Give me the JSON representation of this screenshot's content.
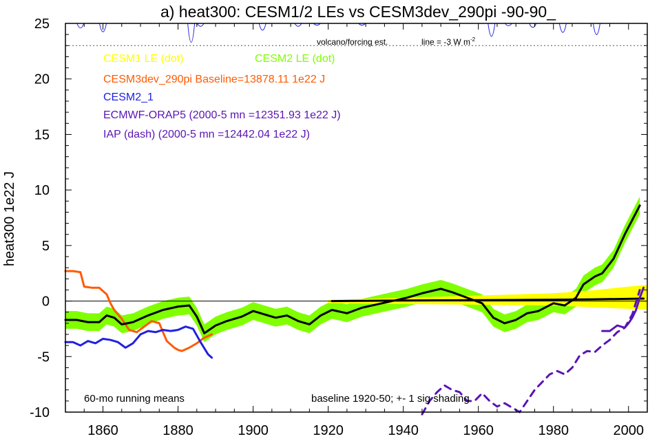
{
  "chart_data": {
    "type": "line",
    "title": "a) heat300: CESM1/2 LEs vs CESM3dev_290pi -90-90_",
    "ylabel": "heat300 1e22 J",
    "xlim": [
      1850,
      2005
    ],
    "ylim": [
      -10,
      25
    ],
    "xticks": [
      "1860",
      "1880",
      "1900",
      "1920",
      "1940",
      "1960",
      "1980",
      "2000"
    ],
    "yticks": [
      "-10",
      "-5",
      "0",
      "5",
      "10",
      "15",
      "20",
      "25"
    ],
    "legend": [
      {
        "text": "CESM1 LE (dot)",
        "color": "#ffff00"
      },
      {
        "text": "CESM2 LE (dot)",
        "color": "#80ff00"
      },
      {
        "text": "CESM3dev_290pi Baseline=13878.11 1e22 J",
        "color": "#ff5a00"
      },
      {
        "text": "CESM2_1",
        "color": "#2020e0"
      },
      {
        "text": "ECMWF-ORAP5 (2000-5 mn =12351.93 1e22 J)",
        "color": "#5a14b4"
      },
      {
        "text": "IAP (dash) (2000-5 mn =12442.04 1e22 J)",
        "color": "#5a14b4"
      }
    ],
    "annotations": {
      "volcano": "volcano/forcing est.",
      "line_label": "line = -3 W m",
      "line_sup": "-2",
      "running": "60-mo running means",
      "baseline": "baseline 1920-50; +- 1 sig shading"
    },
    "reference_line_y": 0,
    "volcano_baseline_y": 25,
    "volcano_dotted_y": 23,
    "volcano_dips": [
      {
        "year": 1854,
        "y": 24.3
      },
      {
        "year": 1860,
        "y": 23.6
      },
      {
        "year": 1883.5,
        "y": 21.7
      },
      {
        "year": 1886,
        "y": 24.6
      },
      {
        "year": 1902.5,
        "y": 23.9
      },
      {
        "year": 1912,
        "y": 24.6
      },
      {
        "year": 1917,
        "y": 24.8
      },
      {
        "year": 1929,
        "y": 24.8
      },
      {
        "year": 1963.5,
        "y": 22.8
      },
      {
        "year": 1968,
        "y": 24.7
      },
      {
        "year": 1974.5,
        "y": 24.4
      },
      {
        "year": 1982.5,
        "y": 23.5
      },
      {
        "year": 1991.5,
        "y": 23.1
      }
    ],
    "series": [
      {
        "name": "CESM2 LE",
        "style": "band",
        "color": "#80ff00",
        "x": [
          1850,
          1853,
          1856,
          1859,
          1861,
          1863,
          1865,
          1868,
          1872,
          1876,
          1880,
          1883,
          1885,
          1887,
          1890,
          1893,
          1897,
          1900,
          1903,
          1906,
          1909,
          1912,
          1915,
          1918,
          1921,
          1925,
          1929,
          1933,
          1937,
          1941,
          1945,
          1950,
          1953,
          1957,
          1961,
          1964,
          1967,
          1970,
          1973,
          1976,
          1980,
          1983,
          1986,
          1988,
          1991,
          1993,
          1996,
          1999,
          2001,
          2003
        ],
        "values": [
          -1.7,
          -1.7,
          -1.9,
          -1.9,
          -1.3,
          -1.5,
          -2.1,
          -1.9,
          -1.3,
          -0.8,
          -0.5,
          -0.4,
          -1.4,
          -2.9,
          -2.2,
          -1.8,
          -1.4,
          -0.9,
          -1.2,
          -1.5,
          -1.3,
          -1.8,
          -2.1,
          -1.3,
          -0.8,
          -1.1,
          -0.6,
          -0.3,
          0.0,
          0.3,
          0.7,
          1.1,
          0.8,
          0.3,
          -0.2,
          -1.5,
          -2.0,
          -1.7,
          -1.1,
          -0.9,
          -0.2,
          -0.4,
          0.3,
          1.5,
          2.2,
          2.5,
          3.8,
          6.0,
          7.3,
          8.6
        ],
        "spread": 0.8
      },
      {
        "name": "CESM1 LE",
        "style": "band",
        "color": "#ffff00",
        "x": [
          1920,
          1935,
          1950,
          1965,
          1980,
          1990,
          2000,
          2005
        ],
        "values": [
          -0.05,
          0.0,
          0.05,
          0.1,
          0.15,
          0.2,
          0.3,
          0.35
        ],
        "spread": [
          0.15,
          0.25,
          0.35,
          0.45,
          0.55,
          0.75,
          1.0,
          1.1
        ]
      },
      {
        "name": "CESM3dev_290pi",
        "color": "#ff5a00",
        "width": 3,
        "x": [
          1850,
          1852,
          1854,
          1855,
          1857,
          1859,
          1861,
          1862,
          1863,
          1865,
          1867,
          1869,
          1871,
          1873,
          1875,
          1877,
          1879,
          1880,
          1881,
          1883,
          1885,
          1887,
          1889
        ],
        "values": [
          2.7,
          2.7,
          2.6,
          1.3,
          1.2,
          1.2,
          0.6,
          -0.2,
          -0.8,
          -1.6,
          -2.6,
          -2.8,
          -2.3,
          -1.8,
          -2.0,
          -3.6,
          -4.2,
          -4.4,
          -4.5,
          -4.2,
          -3.8,
          -3.3,
          -3.0
        ]
      },
      {
        "name": "CESM2_1",
        "color": "#2020e0",
        "width": 3,
        "x": [
          1850,
          1852,
          1854,
          1856,
          1858,
          1860,
          1862,
          1864,
          1866,
          1868,
          1870,
          1872,
          1874,
          1876,
          1878,
          1880,
          1882,
          1884,
          1886,
          1888,
          1889
        ],
        "values": [
          -3.7,
          -3.7,
          -4.0,
          -3.6,
          -3.8,
          -3.4,
          -3.5,
          -3.7,
          -4.2,
          -3.8,
          -3.0,
          -2.7,
          -2.8,
          -2.6,
          -2.7,
          -2.6,
          -2.3,
          -2.5,
          -3.7,
          -4.8,
          -5.1
        ]
      },
      {
        "name": "ensemble mean",
        "color": "#000000",
        "width": 3,
        "x": [
          1850,
          1853,
          1856,
          1859,
          1861,
          1863,
          1865,
          1868,
          1872,
          1876,
          1880,
          1883,
          1885,
          1887,
          1890,
          1893,
          1897,
          1900,
          1903,
          1906,
          1909,
          1912,
          1915,
          1918,
          1921,
          1925,
          1929,
          1933,
          1937,
          1941,
          1945,
          1950,
          1953,
          1957,
          1961,
          1964,
          1967,
          1970,
          1973,
          1976,
          1980,
          1983,
          1986,
          1988,
          1991,
          1993,
          1996,
          1999,
          2001,
          2003
        ],
        "values": [
          -1.7,
          -1.7,
          -1.9,
          -1.9,
          -1.3,
          -1.5,
          -2.1,
          -1.9,
          -1.3,
          -0.8,
          -0.5,
          -0.4,
          -1.4,
          -2.9,
          -2.2,
          -1.8,
          -1.4,
          -0.9,
          -1.2,
          -1.5,
          -1.3,
          -1.8,
          -2.1,
          -1.3,
          -0.8,
          -1.1,
          -0.6,
          -0.3,
          0.0,
          0.3,
          0.7,
          1.1,
          0.8,
          0.3,
          -0.2,
          -1.5,
          -2.0,
          -1.7,
          -1.1,
          -0.9,
          -0.2,
          -0.4,
          0.3,
          1.5,
          2.2,
          2.5,
          3.8,
          6.0,
          7.3,
          8.6
        ]
      },
      {
        "name": "CESM3 baseline mean",
        "color": "#000000",
        "width": 3,
        "x": [
          1921,
          1930,
          1940,
          1950,
          1960,
          1970,
          1980,
          1990,
          2000,
          2004
        ],
        "values": [
          0.0,
          0.02,
          0.05,
          0.07,
          0.08,
          0.1,
          0.12,
          0.15,
          0.2,
          0.22
        ]
      },
      {
        "name": "IAP",
        "color": "#5a14b4",
        "width": 3,
        "dash": "10,8",
        "x": [
          1945,
          1947,
          1949,
          1951,
          1953,
          1955,
          1957,
          1959,
          1961,
          1963,
          1965,
          1967,
          1969,
          1971,
          1973,
          1975,
          1977,
          1979,
          1981,
          1983,
          1985,
          1987,
          1989,
          1991,
          1993,
          1995,
          1997,
          1999,
          2001,
          2003
        ],
        "values": [
          -10.2,
          -9.0,
          -8.2,
          -7.6,
          -8.0,
          -8.2,
          -9.0,
          -9.0,
          -8.3,
          -9.0,
          -9.5,
          -9.2,
          -9.6,
          -10.0,
          -9.0,
          -8.0,
          -7.3,
          -6.6,
          -6.3,
          -6.6,
          -6.0,
          -4.9,
          -4.5,
          -4.6,
          -4.0,
          -3.5,
          -2.8,
          -2.4,
          -1.2,
          1.0
        ]
      },
      {
        "name": "ECMWF-ORAP5",
        "color": "#5a14b4",
        "width": 3,
        "x": [
          1993,
          1995,
          1997,
          1999,
          2000,
          2001,
          2002,
          2003,
          2004
        ],
        "values": [
          -2.7,
          -2.7,
          -2.2,
          -2.4,
          -2.0,
          -1.5,
          -0.8,
          0.3,
          1.2
        ]
      }
    ]
  }
}
